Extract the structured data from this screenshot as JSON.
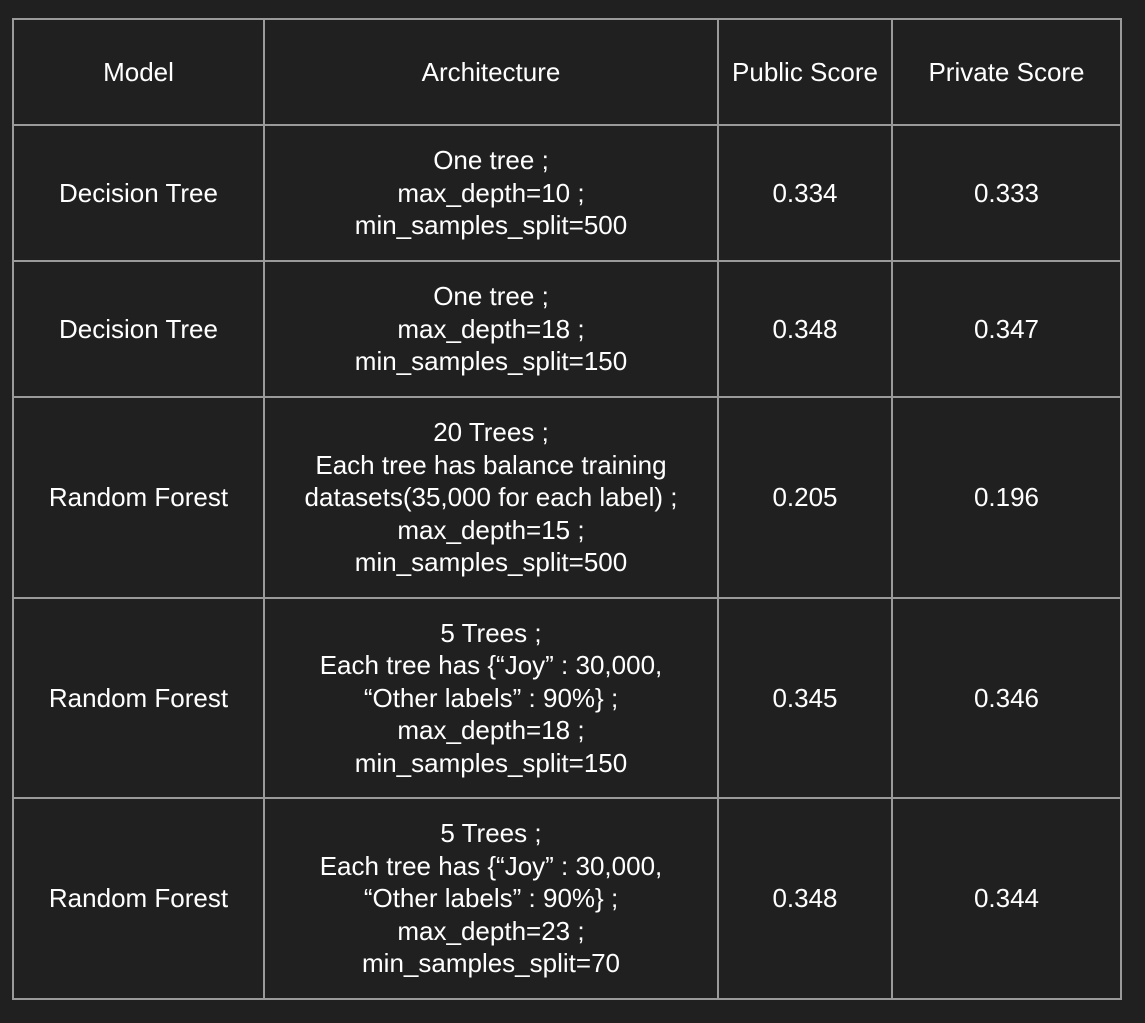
{
  "table": {
    "headers": {
      "model": "Model",
      "architecture": "Architecture",
      "public_score": "Public Score",
      "private_score": "Private Score"
    },
    "rows": [
      {
        "model": "Decision Tree",
        "architecture": [
          "One tree ;",
          "max_depth=10 ;",
          "min_samples_split=500"
        ],
        "public_score": "0.334",
        "private_score": "0.333"
      },
      {
        "model": "Decision Tree",
        "architecture": [
          "One tree ;",
          "max_depth=18 ;",
          "min_samples_split=150"
        ],
        "public_score": "0.348",
        "private_score": "0.347"
      },
      {
        "model": "Random Forest",
        "architecture": [
          "20 Trees ;",
          "Each tree has balance training",
          "datasets(35,000 for each label) ;",
          "max_depth=15 ;",
          "min_samples_split=500"
        ],
        "public_score": "0.205",
        "private_score": "0.196"
      },
      {
        "model": "Random Forest",
        "architecture": [
          "5 Trees ;",
          "Each tree has {“Joy” : 30,000,",
          "“Other labels” : 90%} ;",
          "max_depth=18 ;",
          "min_samples_split=150"
        ],
        "public_score": "0.345",
        "private_score": "0.346"
      },
      {
        "model": "Random Forest",
        "architecture": [
          "5 Trees ;",
          "Each tree has {“Joy” : 30,000,",
          "“Other labels” : 90%} ;",
          "max_depth=23 ;",
          "min_samples_split=70"
        ],
        "public_score": "0.348",
        "private_score": "0.344"
      }
    ]
  }
}
